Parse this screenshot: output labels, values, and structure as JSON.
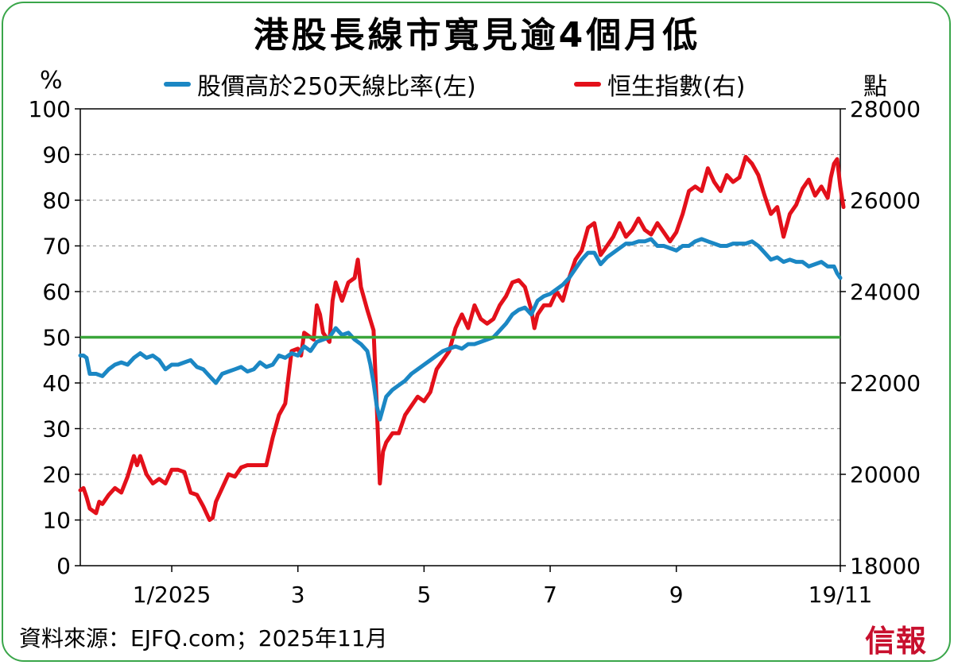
{
  "chart_data": {
    "type": "line",
    "title": "港股長線市寬見逾4個月低",
    "left_unit": "%",
    "right_unit": "點",
    "source": "資料來源：EJFQ.com；2025年11月",
    "logo": "信報",
    "x_ticks": [
      {
        "x": 2.0,
        "label": "1/2025"
      },
      {
        "x": 4.0,
        "label": "3"
      },
      {
        "x": 6.0,
        "label": "5"
      },
      {
        "x": 8.0,
        "label": "7"
      },
      {
        "x": 10.0,
        "label": "9"
      },
      {
        "x": 12.6,
        "label": "19/11"
      }
    ],
    "x_range": [
      0.55,
      12.6
    ],
    "y_left": {
      "range": [
        0,
        100
      ],
      "ticks": [
        "0",
        "10",
        "20",
        "30",
        "40",
        "50",
        "60",
        "70",
        "80",
        "90",
        "100"
      ]
    },
    "y_right": {
      "range": [
        18000,
        28000
      ],
      "ticks": [
        "18000",
        "20000",
        "22000",
        "24000",
        "26000",
        "28000"
      ]
    },
    "reference_line": {
      "axis": "left",
      "value": 50,
      "color": "#3aa63a"
    },
    "grid": "dashed horizontal",
    "legend_position": "top",
    "series": [
      {
        "name": "股價高於250天線比率(左)",
        "axis": "left",
        "color": "#1b87c4",
        "points": [
          [
            0.55,
            46
          ],
          [
            0.6,
            46
          ],
          [
            0.65,
            45.5
          ],
          [
            0.7,
            42
          ],
          [
            0.8,
            42
          ],
          [
            0.9,
            41.5
          ],
          [
            1.0,
            43
          ],
          [
            1.1,
            44
          ],
          [
            1.2,
            44.5
          ],
          [
            1.3,
            44
          ],
          [
            1.4,
            45.5
          ],
          [
            1.5,
            46.5
          ],
          [
            1.6,
            45.5
          ],
          [
            1.7,
            46
          ],
          [
            1.8,
            45
          ],
          [
            1.9,
            43
          ],
          [
            2.0,
            44
          ],
          [
            2.1,
            44
          ],
          [
            2.2,
            44.5
          ],
          [
            2.3,
            45
          ],
          [
            2.4,
            43.5
          ],
          [
            2.5,
            43
          ],
          [
            2.6,
            41.5
          ],
          [
            2.7,
            40
          ],
          [
            2.8,
            42
          ],
          [
            2.9,
            42.5
          ],
          [
            3.0,
            43
          ],
          [
            3.1,
            43.5
          ],
          [
            3.2,
            42.5
          ],
          [
            3.3,
            43
          ],
          [
            3.4,
            44.5
          ],
          [
            3.5,
            43.5
          ],
          [
            3.6,
            44
          ],
          [
            3.7,
            46
          ],
          [
            3.8,
            45.5
          ],
          [
            3.9,
            46.5
          ],
          [
            4.0,
            46
          ],
          [
            4.1,
            48
          ],
          [
            4.2,
            47
          ],
          [
            4.3,
            49
          ],
          [
            4.4,
            49.5
          ],
          [
            4.5,
            50
          ],
          [
            4.6,
            52
          ],
          [
            4.7,
            50.5
          ],
          [
            4.8,
            51
          ],
          [
            4.9,
            49.5
          ],
          [
            5.0,
            48.5
          ],
          [
            5.1,
            47
          ],
          [
            5.15,
            44
          ],
          [
            5.2,
            40
          ],
          [
            5.25,
            35
          ],
          [
            5.3,
            32
          ],
          [
            5.4,
            37
          ],
          [
            5.5,
            38.5
          ],
          [
            5.6,
            39.5
          ],
          [
            5.7,
            40.5
          ],
          [
            5.8,
            42
          ],
          [
            5.9,
            43
          ],
          [
            6.0,
            44
          ],
          [
            6.1,
            45
          ],
          [
            6.2,
            46
          ],
          [
            6.3,
            47
          ],
          [
            6.4,
            47.5
          ],
          [
            6.5,
            48
          ],
          [
            6.6,
            47.5
          ],
          [
            6.7,
            48.5
          ],
          [
            6.8,
            48.5
          ],
          [
            6.9,
            49
          ],
          [
            7.0,
            49.5
          ],
          [
            7.1,
            50
          ],
          [
            7.2,
            51.5
          ],
          [
            7.3,
            53
          ],
          [
            7.4,
            55
          ],
          [
            7.5,
            56
          ],
          [
            7.6,
            56.5
          ],
          [
            7.7,
            55
          ],
          [
            7.8,
            58
          ],
          [
            7.9,
            59
          ],
          [
            8.0,
            59.5
          ],
          [
            8.1,
            60.5
          ],
          [
            8.2,
            61.5
          ],
          [
            8.3,
            63
          ],
          [
            8.4,
            65
          ],
          [
            8.5,
            67
          ],
          [
            8.6,
            68.5
          ],
          [
            8.7,
            68.5
          ],
          [
            8.8,
            66
          ],
          [
            8.9,
            67.5
          ],
          [
            9.0,
            68.5
          ],
          [
            9.1,
            69.5
          ],
          [
            9.2,
            70.5
          ],
          [
            9.3,
            70.5
          ],
          [
            9.4,
            71
          ],
          [
            9.5,
            71
          ],
          [
            9.6,
            71.5
          ],
          [
            9.7,
            70
          ],
          [
            9.8,
            70
          ],
          [
            9.9,
            69.5
          ],
          [
            10.0,
            69
          ],
          [
            10.1,
            70
          ],
          [
            10.2,
            70
          ],
          [
            10.3,
            71
          ],
          [
            10.4,
            71.5
          ],
          [
            10.5,
            71
          ],
          [
            10.6,
            70.5
          ],
          [
            10.7,
            70
          ],
          [
            10.8,
            70
          ],
          [
            10.9,
            70.5
          ],
          [
            11.0,
            70.5
          ],
          [
            11.1,
            70.5
          ],
          [
            11.2,
            71
          ],
          [
            11.3,
            70
          ],
          [
            11.4,
            68.5
          ],
          [
            11.5,
            67
          ],
          [
            11.6,
            67.5
          ],
          [
            11.7,
            66.5
          ],
          [
            11.8,
            67
          ],
          [
            11.9,
            66.5
          ],
          [
            12.0,
            66.5
          ],
          [
            12.1,
            65.5
          ],
          [
            12.2,
            66
          ],
          [
            12.3,
            66.5
          ],
          [
            12.4,
            65.5
          ],
          [
            12.5,
            65.5
          ],
          [
            12.55,
            64
          ],
          [
            12.6,
            63
          ]
        ]
      },
      {
        "name": "恒生指數(右)",
        "axis": "right",
        "color": "#e3101a",
        "points": [
          [
            0.55,
            19650
          ],
          [
            0.6,
            19700
          ],
          [
            0.65,
            19500
          ],
          [
            0.7,
            19250
          ],
          [
            0.8,
            19150
          ],
          [
            0.85,
            19400
          ],
          [
            0.9,
            19350
          ],
          [
            1.0,
            19550
          ],
          [
            1.1,
            19700
          ],
          [
            1.2,
            19600
          ],
          [
            1.3,
            19950
          ],
          [
            1.4,
            20400
          ],
          [
            1.45,
            20200
          ],
          [
            1.5,
            20400
          ],
          [
            1.6,
            20000
          ],
          [
            1.7,
            19800
          ],
          [
            1.8,
            19900
          ],
          [
            1.9,
            19800
          ],
          [
            2.0,
            20100
          ],
          [
            2.1,
            20100
          ],
          [
            2.2,
            20050
          ],
          [
            2.3,
            19600
          ],
          [
            2.4,
            19550
          ],
          [
            2.5,
            19300
          ],
          [
            2.6,
            19000
          ],
          [
            2.65,
            19050
          ],
          [
            2.7,
            19400
          ],
          [
            2.8,
            19700
          ],
          [
            2.9,
            20000
          ],
          [
            3.0,
            19950
          ],
          [
            3.1,
            20150
          ],
          [
            3.2,
            20200
          ],
          [
            3.3,
            20200
          ],
          [
            3.4,
            20200
          ],
          [
            3.5,
            20200
          ],
          [
            3.6,
            20800
          ],
          [
            3.7,
            21300
          ],
          [
            3.8,
            21550
          ],
          [
            3.9,
            22700
          ],
          [
            4.0,
            22750
          ],
          [
            4.05,
            22600
          ],
          [
            4.1,
            23100
          ],
          [
            4.2,
            23000
          ],
          [
            4.25,
            22950
          ],
          [
            4.3,
            23700
          ],
          [
            4.35,
            23500
          ],
          [
            4.4,
            23100
          ],
          [
            4.5,
            22900
          ],
          [
            4.55,
            23800
          ],
          [
            4.6,
            24200
          ],
          [
            4.7,
            23800
          ],
          [
            4.8,
            24200
          ],
          [
            4.9,
            24300
          ],
          [
            4.95,
            24700
          ],
          [
            5.0,
            24100
          ],
          [
            5.1,
            23600
          ],
          [
            5.2,
            23150
          ],
          [
            5.25,
            21500
          ],
          [
            5.3,
            19800
          ],
          [
            5.35,
            20500
          ],
          [
            5.4,
            20700
          ],
          [
            5.5,
            20900
          ],
          [
            5.6,
            20900
          ],
          [
            5.7,
            21300
          ],
          [
            5.8,
            21500
          ],
          [
            5.9,
            21700
          ],
          [
            6.0,
            21600
          ],
          [
            6.1,
            21800
          ],
          [
            6.2,
            22300
          ],
          [
            6.3,
            22500
          ],
          [
            6.4,
            22700
          ],
          [
            6.5,
            23200
          ],
          [
            6.6,
            23500
          ],
          [
            6.7,
            23200
          ],
          [
            6.8,
            23700
          ],
          [
            6.9,
            23400
          ],
          [
            7.0,
            23300
          ],
          [
            7.1,
            23400
          ],
          [
            7.2,
            23700
          ],
          [
            7.3,
            23900
          ],
          [
            7.4,
            24200
          ],
          [
            7.5,
            24250
          ],
          [
            7.6,
            24100
          ],
          [
            7.7,
            23600
          ],
          [
            7.75,
            23200
          ],
          [
            7.8,
            23500
          ],
          [
            7.9,
            23700
          ],
          [
            8.0,
            23700
          ],
          [
            8.1,
            24000
          ],
          [
            8.2,
            23800
          ],
          [
            8.3,
            24300
          ],
          [
            8.4,
            24700
          ],
          [
            8.5,
            24900
          ],
          [
            8.6,
            25400
          ],
          [
            8.7,
            25500
          ],
          [
            8.8,
            24800
          ],
          [
            8.9,
            25000
          ],
          [
            9.0,
            25200
          ],
          [
            9.1,
            25500
          ],
          [
            9.2,
            25200
          ],
          [
            9.3,
            25350
          ],
          [
            9.4,
            25600
          ],
          [
            9.5,
            25350
          ],
          [
            9.6,
            25250
          ],
          [
            9.7,
            25500
          ],
          [
            9.8,
            25300
          ],
          [
            9.9,
            25100
          ],
          [
            10.0,
            25300
          ],
          [
            10.1,
            25700
          ],
          [
            10.2,
            26200
          ],
          [
            10.3,
            26300
          ],
          [
            10.4,
            26200
          ],
          [
            10.5,
            26700
          ],
          [
            10.6,
            26400
          ],
          [
            10.7,
            26200
          ],
          [
            10.8,
            26550
          ],
          [
            10.9,
            26400
          ],
          [
            11.0,
            26500
          ],
          [
            11.1,
            26950
          ],
          [
            11.2,
            26800
          ],
          [
            11.3,
            26550
          ],
          [
            11.4,
            26100
          ],
          [
            11.5,
            25700
          ],
          [
            11.6,
            25850
          ],
          [
            11.7,
            25200
          ],
          [
            11.8,
            25700
          ],
          [
            11.9,
            25900
          ],
          [
            12.0,
            26250
          ],
          [
            12.1,
            26450
          ],
          [
            12.2,
            26100
          ],
          [
            12.3,
            26300
          ],
          [
            12.4,
            26050
          ],
          [
            12.45,
            26500
          ],
          [
            12.5,
            26800
          ],
          [
            12.55,
            26900
          ],
          [
            12.6,
            26300
          ],
          [
            12.65,
            25850
          ]
        ]
      }
    ]
  }
}
